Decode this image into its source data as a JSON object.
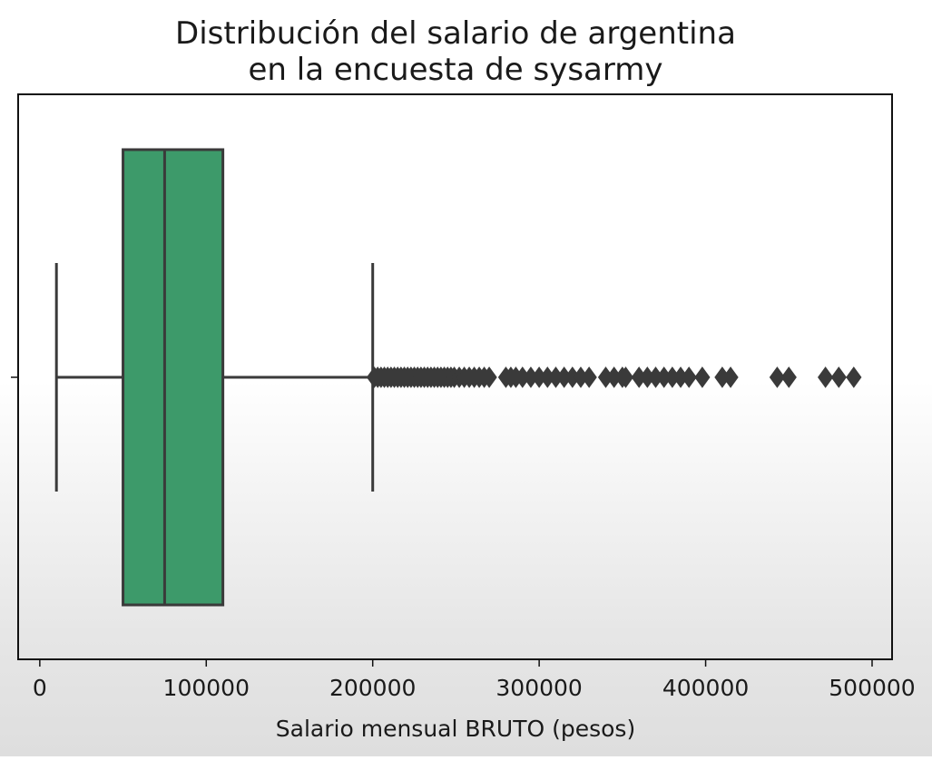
{
  "chart_data": {
    "type": "box",
    "orientation": "horizontal",
    "title_lines": [
      "Distribución del salario de argentina",
      "en la encuesta de sysarmy"
    ],
    "xlabel": "Salario mensual BRUTO (pesos)",
    "ylabel": "",
    "xlim": [
      -13000,
      512000
    ],
    "xticks": [
      0,
      100000,
      200000,
      300000,
      400000,
      500000
    ],
    "xtick_labels": [
      "0",
      "100000",
      "200000",
      "300000",
      "400000",
      "500000"
    ],
    "grid": false,
    "box_color": "#3d9a6a",
    "box": {
      "whisker_low": 10000,
      "q1": 50000,
      "median": 75000,
      "q3": 110000,
      "whisker_high": 200000
    },
    "outliers": [
      201000,
      203000,
      205000,
      207000,
      209000,
      211000,
      213000,
      215000,
      217000,
      219000,
      221000,
      223000,
      225000,
      227000,
      229000,
      231000,
      233000,
      235000,
      237000,
      239000,
      241000,
      243000,
      245000,
      247000,
      249000,
      252000,
      255000,
      258000,
      261000,
      264000,
      267000,
      270000,
      280000,
      283000,
      286000,
      290000,
      295000,
      300000,
      305000,
      310000,
      315000,
      320000,
      325000,
      330000,
      340000,
      345000,
      350000,
      352000,
      360000,
      365000,
      370000,
      375000,
      380000,
      385000,
      390000,
      398000,
      410000,
      415000,
      443000,
      450000,
      472000,
      480000,
      489000
    ]
  }
}
